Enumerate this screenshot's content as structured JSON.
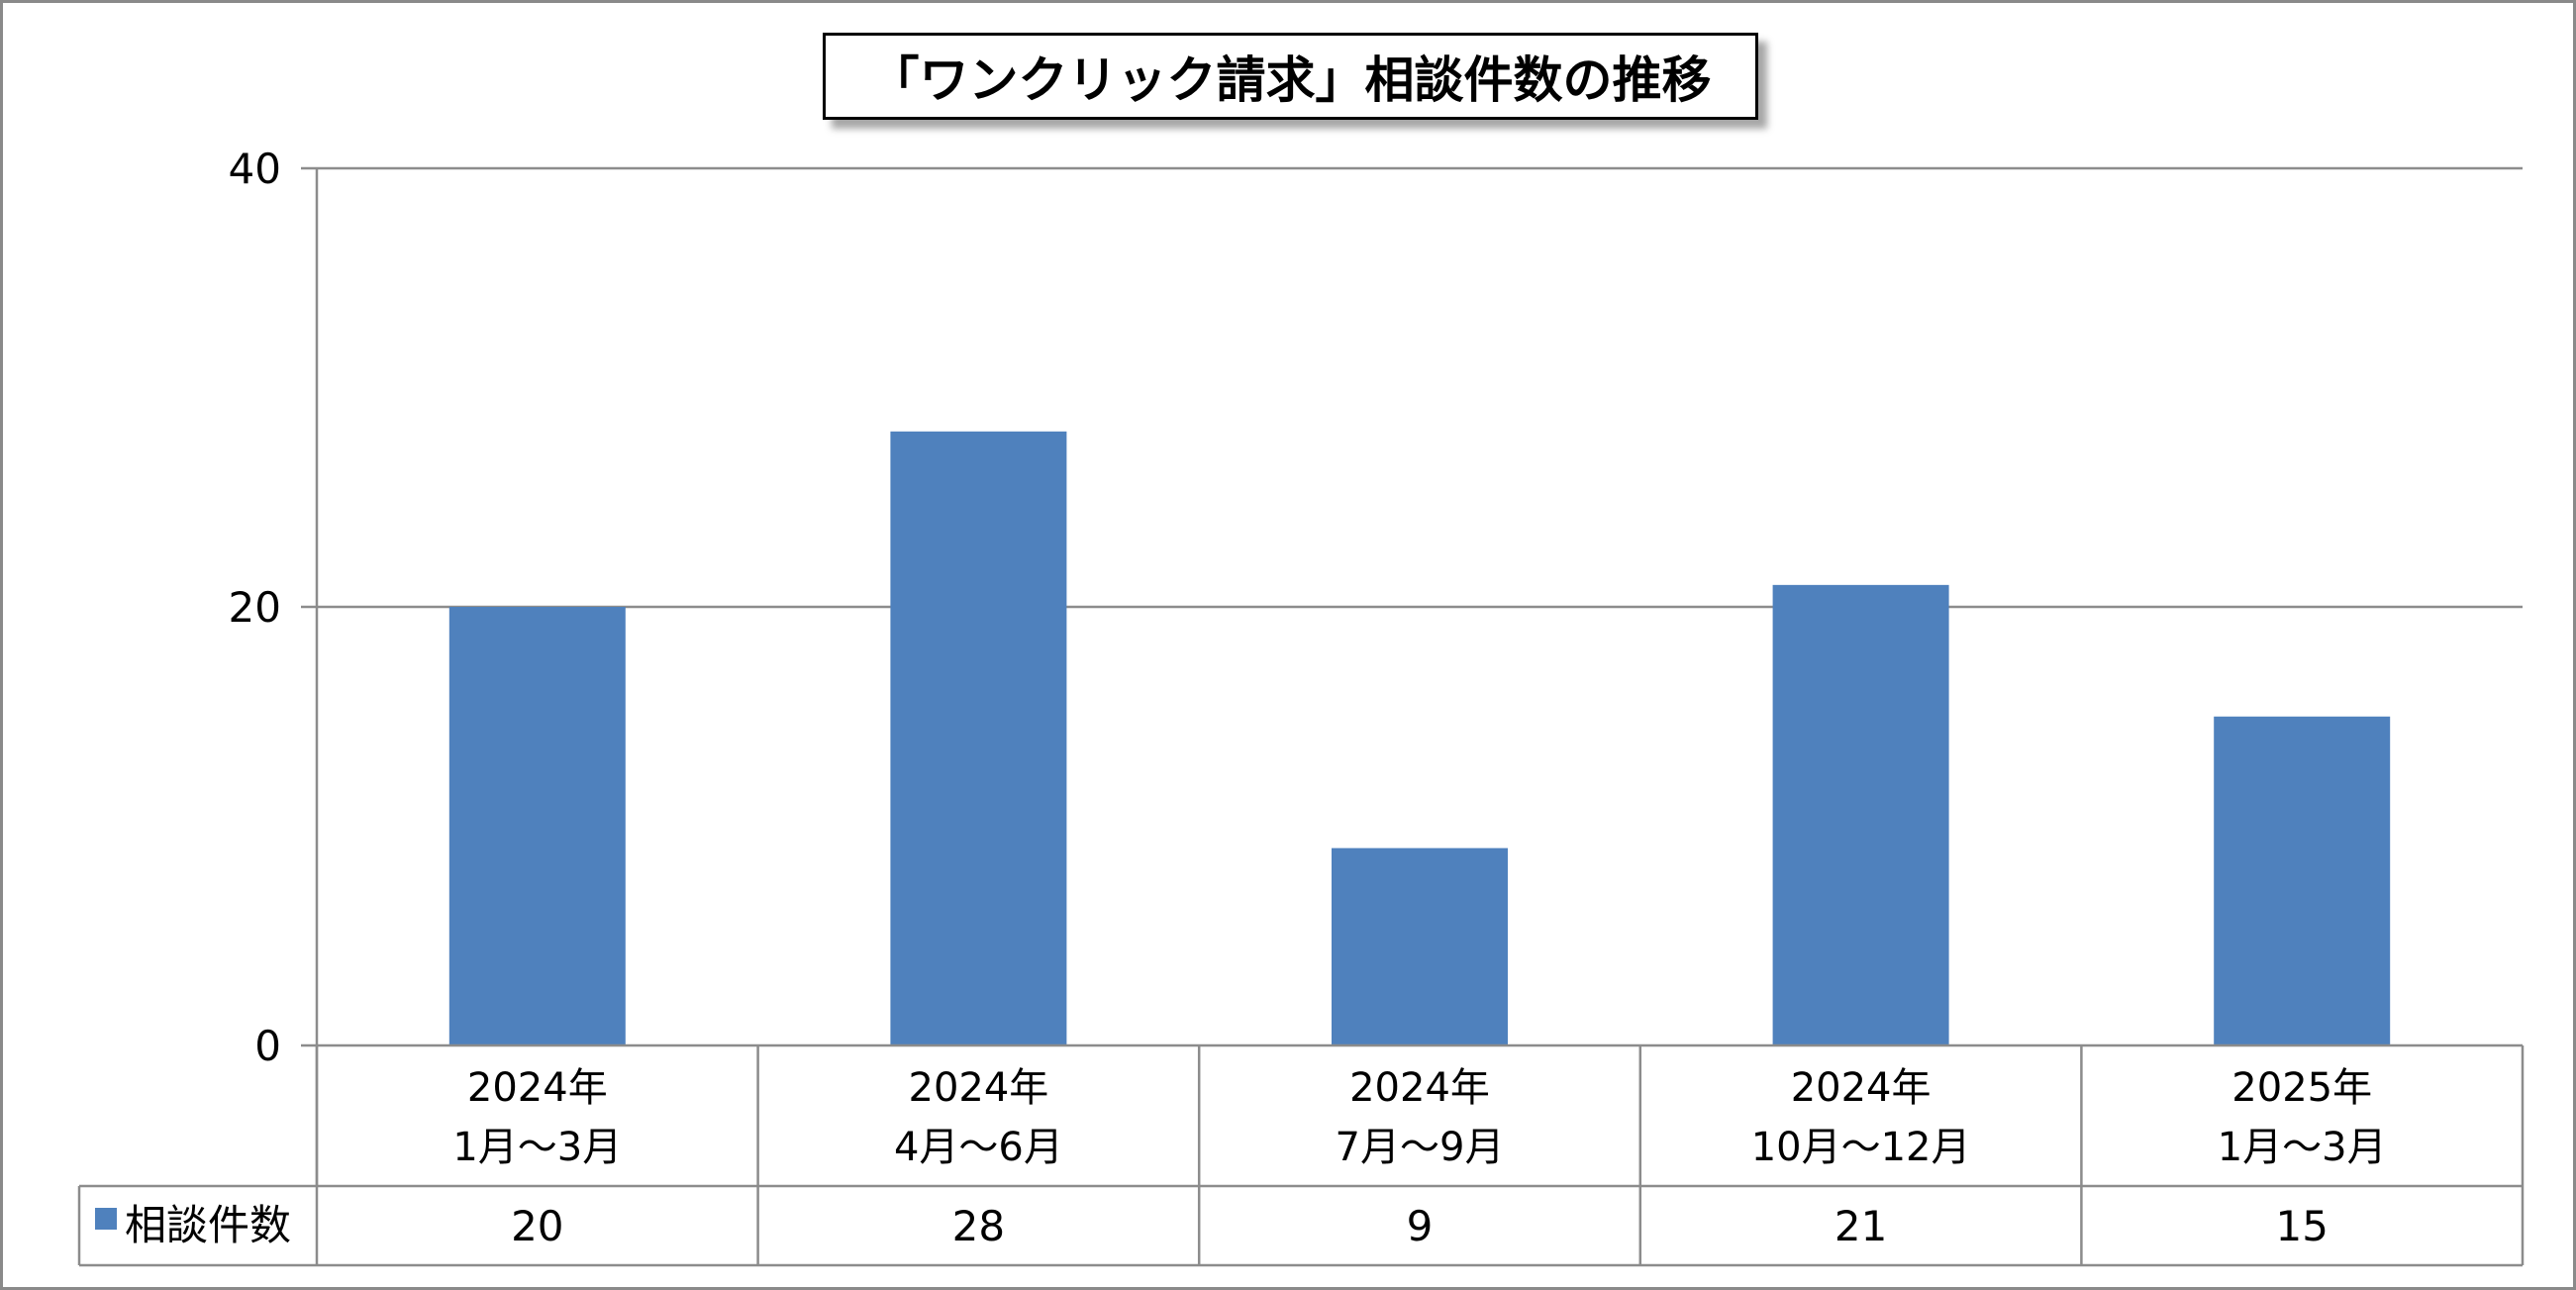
{
  "chart_data": {
    "type": "bar",
    "title": "「ワンクリック請求」相談件数の推移",
    "categories": [
      [
        "2024年",
        "1月～3月"
      ],
      [
        "2024年",
        "4月～6月"
      ],
      [
        "2024年",
        "7月～9月"
      ],
      [
        "2024年",
        "10月～12月"
      ],
      [
        "2025年",
        "1月～3月"
      ]
    ],
    "series": [
      {
        "name": "相談件数",
        "values": [
          20,
          28,
          9,
          21,
          15
        ],
        "color": "#4F81BD"
      }
    ],
    "ylim": [
      0,
      40
    ],
    "yticks": [
      "0",
      "20",
      "40"
    ],
    "grid": true,
    "legend": "data-table"
  }
}
